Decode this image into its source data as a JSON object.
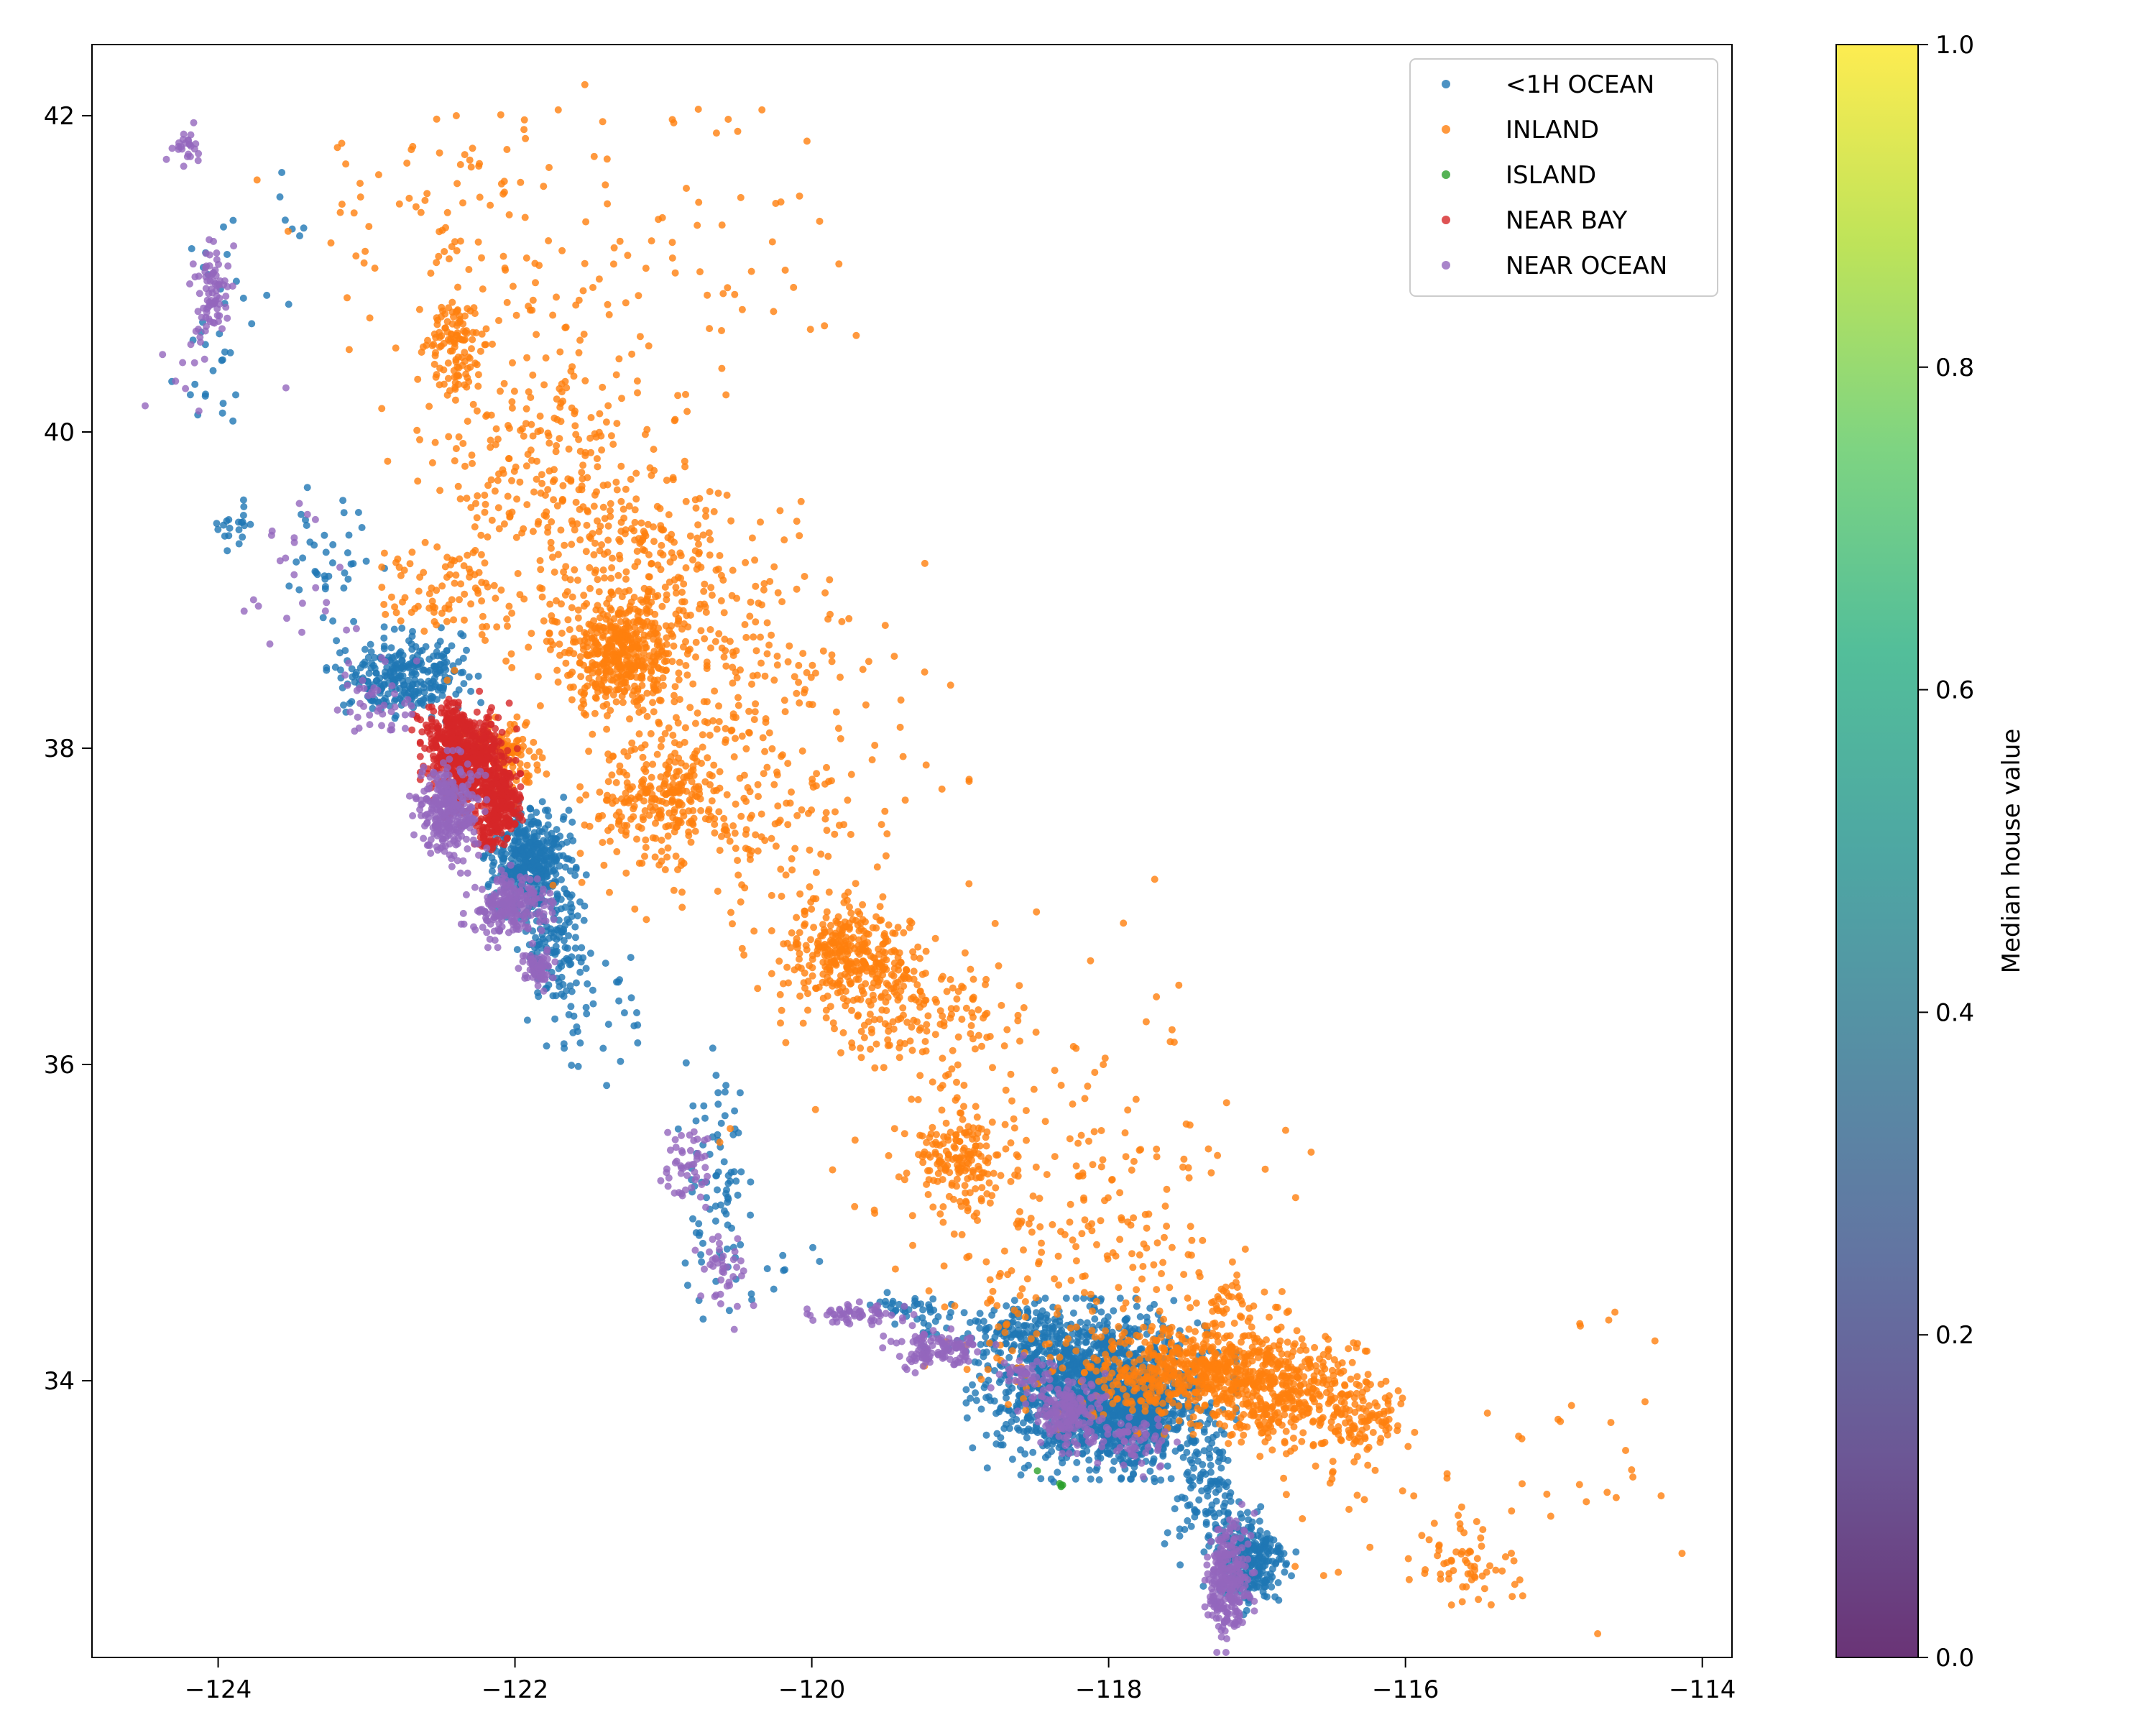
{
  "chart_data": {
    "type": "scatter",
    "title": "",
    "xlabel": "",
    "ylabel": "",
    "xlim": [
      -124.85,
      -113.8
    ],
    "ylim": [
      32.25,
      42.45
    ],
    "xticks": [
      -124,
      -122,
      -120,
      -118,
      -116,
      -114
    ],
    "yticks": [
      34,
      36,
      38,
      40,
      42
    ],
    "grid": false,
    "legend_position": "top-right",
    "series": [
      {
        "name": "<1H OCEAN",
        "color": "#1f77b4",
        "regions": [
          {
            "cx": -118.05,
            "cy": 33.95,
            "sx": 0.35,
            "sy": 0.22,
            "n": 1400
          },
          {
            "cx": -117.85,
            "cy": 33.75,
            "sx": 0.2,
            "sy": 0.15,
            "n": 300
          },
          {
            "cx": -117.05,
            "cy": 32.85,
            "sx": 0.12,
            "sy": 0.15,
            "n": 260
          },
          {
            "cx": -117.35,
            "cy": 33.3,
            "sx": 0.12,
            "sy": 0.2,
            "n": 120
          },
          {
            "cx": -118.6,
            "cy": 34.3,
            "sx": 0.25,
            "sy": 0.08,
            "n": 150
          },
          {
            "cx": -119.3,
            "cy": 34.45,
            "sx": 0.2,
            "sy": 0.05,
            "n": 40
          },
          {
            "cx": -121.9,
            "cy": 37.3,
            "sx": 0.12,
            "sy": 0.15,
            "n": 420
          },
          {
            "cx": -121.75,
            "cy": 36.8,
            "sx": 0.1,
            "sy": 0.2,
            "n": 130
          },
          {
            "cx": -122.75,
            "cy": 38.45,
            "sx": 0.2,
            "sy": 0.12,
            "n": 280
          },
          {
            "cx": -121.45,
            "cy": 36.35,
            "sx": 0.2,
            "sy": 0.2,
            "n": 40
          },
          {
            "cx": -120.65,
            "cy": 35.3,
            "sx": 0.1,
            "sy": 0.35,
            "n": 80
          },
          {
            "cx": -123.2,
            "cy": 39.2,
            "sx": 0.15,
            "sy": 0.2,
            "n": 40
          },
          {
            "cx": -123.9,
            "cy": 39.4,
            "sx": 0.08,
            "sy": 0.08,
            "n": 20
          },
          {
            "cx": -124.0,
            "cy": 40.6,
            "sx": 0.12,
            "sy": 0.3,
            "n": 30
          },
          {
            "cx": -123.7,
            "cy": 41.1,
            "sx": 0.2,
            "sy": 0.25,
            "n": 10
          },
          {
            "cx": -120.3,
            "cy": 34.65,
            "sx": 0.25,
            "sy": 0.12,
            "n": 12
          }
        ]
      },
      {
        "name": "INLAND",
        "color": "#ff7f0e",
        "regions": [
          {
            "cx": -121.3,
            "cy": 38.6,
            "sx": 0.18,
            "sy": 0.15,
            "n": 380
          },
          {
            "cx": -121.0,
            "cy": 39.0,
            "sx": 0.35,
            "sy": 0.3,
            "n": 250
          },
          {
            "cx": -121.0,
            "cy": 37.7,
            "sx": 0.25,
            "sy": 0.18,
            "n": 230
          },
          {
            "cx": -119.75,
            "cy": 36.7,
            "sx": 0.2,
            "sy": 0.15,
            "n": 320
          },
          {
            "cx": -119.3,
            "cy": 36.3,
            "sx": 0.3,
            "sy": 0.2,
            "n": 150
          },
          {
            "cx": -119.0,
            "cy": 35.4,
            "sx": 0.15,
            "sy": 0.15,
            "n": 160
          },
          {
            "cx": -117.3,
            "cy": 34.05,
            "sx": 0.4,
            "sy": 0.15,
            "n": 700
          },
          {
            "cx": -116.8,
            "cy": 33.85,
            "sx": 0.3,
            "sy": 0.15,
            "n": 220
          },
          {
            "cx": -116.3,
            "cy": 33.75,
            "sx": 0.15,
            "sy": 0.1,
            "n": 90
          },
          {
            "cx": -122.1,
            "cy": 37.95,
            "sx": 0.12,
            "sy": 0.12,
            "n": 120
          },
          {
            "cx": -120.5,
            "cy": 38.0,
            "sx": 0.6,
            "sy": 0.6,
            "n": 350
          },
          {
            "cx": -121.8,
            "cy": 39.6,
            "sx": 0.45,
            "sy": 0.45,
            "n": 300
          },
          {
            "cx": -122.4,
            "cy": 40.55,
            "sx": 0.1,
            "sy": 0.15,
            "n": 110
          },
          {
            "cx": -121.9,
            "cy": 40.9,
            "sx": 0.6,
            "sy": 0.5,
            "n": 100
          },
          {
            "cx": -122.5,
            "cy": 41.6,
            "sx": 0.6,
            "sy": 0.25,
            "n": 60
          },
          {
            "cx": -120.5,
            "cy": 41.3,
            "sx": 0.4,
            "sy": 0.5,
            "n": 35
          },
          {
            "cx": -122.5,
            "cy": 39.0,
            "sx": 0.2,
            "sy": 0.15,
            "n": 70
          },
          {
            "cx": -118.3,
            "cy": 34.6,
            "sx": 0.4,
            "sy": 0.4,
            "n": 150
          },
          {
            "cx": -118.8,
            "cy": 35.8,
            "sx": 0.7,
            "sy": 0.6,
            "n": 120
          },
          {
            "cx": -117.8,
            "cy": 35.0,
            "sx": 0.6,
            "sy": 0.4,
            "n": 60
          },
          {
            "cx": -115.6,
            "cy": 32.85,
            "sx": 0.15,
            "sy": 0.12,
            "n": 60
          },
          {
            "cx": -114.6,
            "cy": 33.7,
            "sx": 0.25,
            "sy": 0.5,
            "n": 20
          },
          {
            "cx": -116.0,
            "cy": 33.3,
            "sx": 0.5,
            "sy": 0.35,
            "n": 40
          },
          {
            "cx": -117.2,
            "cy": 34.5,
            "sx": 0.15,
            "sy": 0.1,
            "n": 40
          }
        ]
      },
      {
        "name": "ISLAND",
        "color": "#2ca02c",
        "points": [
          [
            -118.32,
            33.34
          ],
          [
            -118.33,
            33.35
          ],
          [
            -118.32,
            33.33
          ],
          [
            -118.31,
            33.34
          ],
          [
            -118.48,
            33.43
          ]
        ]
      },
      {
        "name": "NEAR BAY",
        "color": "#d62728",
        "regions": [
          {
            "cx": -122.3,
            "cy": 37.9,
            "sx": 0.13,
            "sy": 0.15,
            "n": 550
          },
          {
            "cx": -122.1,
            "cy": 37.65,
            "sx": 0.06,
            "sy": 0.1,
            "n": 200
          },
          {
            "cx": -122.45,
            "cy": 38.1,
            "sx": 0.1,
            "sy": 0.1,
            "n": 150
          },
          {
            "cx": -122.2,
            "cy": 37.45,
            "sx": 0.05,
            "sy": 0.05,
            "n": 40
          }
        ]
      },
      {
        "name": "NEAR OCEAN",
        "color": "#9467bd",
        "regions": [
          {
            "cx": -122.45,
            "cy": 37.6,
            "sx": 0.1,
            "sy": 0.15,
            "n": 300
          },
          {
            "cx": -122.05,
            "cy": 37.0,
            "sx": 0.12,
            "sy": 0.1,
            "n": 220
          },
          {
            "cx": -121.85,
            "cy": 36.6,
            "sx": 0.05,
            "sy": 0.06,
            "n": 70
          },
          {
            "cx": -117.2,
            "cy": 32.75,
            "sx": 0.07,
            "sy": 0.18,
            "n": 260
          },
          {
            "cx": -118.3,
            "cy": 33.8,
            "sx": 0.12,
            "sy": 0.1,
            "n": 180
          },
          {
            "cx": -119.15,
            "cy": 34.2,
            "sx": 0.15,
            "sy": 0.06,
            "n": 120
          },
          {
            "cx": -119.7,
            "cy": 34.42,
            "sx": 0.15,
            "sy": 0.03,
            "n": 60
          },
          {
            "cx": -120.6,
            "cy": 34.7,
            "sx": 0.08,
            "sy": 0.15,
            "n": 40
          },
          {
            "cx": -120.85,
            "cy": 35.35,
            "sx": 0.1,
            "sy": 0.1,
            "n": 50
          },
          {
            "cx": -124.05,
            "cy": 40.85,
            "sx": 0.06,
            "sy": 0.15,
            "n": 80
          },
          {
            "cx": -124.2,
            "cy": 41.8,
            "sx": 0.06,
            "sy": 0.06,
            "n": 25
          },
          {
            "cx": -123.4,
            "cy": 39.0,
            "sx": 0.25,
            "sy": 0.3,
            "n": 25
          },
          {
            "cx": -122.9,
            "cy": 38.3,
            "sx": 0.15,
            "sy": 0.12,
            "n": 40
          },
          {
            "cx": -117.85,
            "cy": 33.6,
            "sx": 0.12,
            "sy": 0.08,
            "n": 60
          },
          {
            "cx": -118.55,
            "cy": 34.05,
            "sx": 0.1,
            "sy": 0.05,
            "n": 40
          },
          {
            "cx": -124.0,
            "cy": 40.3,
            "sx": 0.3,
            "sy": 0.4,
            "n": 10
          }
        ]
      }
    ],
    "colorbar": {
      "label": "Median house value",
      "min": 0.0,
      "max": 1.0,
      "ticks": [
        "0.0",
        "0.2",
        "0.4",
        "0.6",
        "0.8",
        "1.0"
      ],
      "colormap": "viridis",
      "alpha": 0.8
    }
  }
}
